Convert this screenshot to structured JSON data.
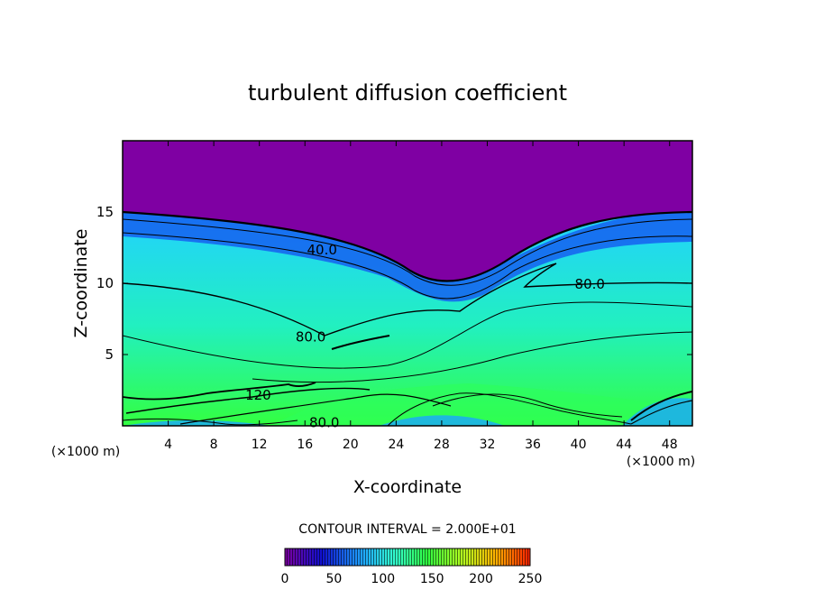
{
  "chart_data": {
    "type": "heatmap",
    "title": "turbulent diffusion coefficient",
    "xlabel": "X-coordinate",
    "ylabel": "Z-coordinate",
    "x_unit_left": "(×1000 m)",
    "x_unit_right": "(×1000 m)",
    "xlim": [
      0,
      50
    ],
    "ylim": [
      0,
      20
    ],
    "x_ticks": [
      "4",
      "8",
      "12",
      "16",
      "20",
      "24",
      "28",
      "32",
      "36",
      "40",
      "44",
      "48"
    ],
    "x_tick_values": [
      4,
      8,
      12,
      16,
      20,
      24,
      28,
      32,
      36,
      40,
      44,
      48
    ],
    "y_ticks": [
      "5",
      "10",
      "15"
    ],
    "y_tick_values": [
      5,
      10,
      15
    ],
    "contour_interval_text": "CONTOUR INTERVAL = 2.000E+01",
    "contour_interval": 20,
    "contour_labels": [
      {
        "text": "40.0",
        "x": 17.5,
        "z": 12.4
      },
      {
        "text": "80.0",
        "x": 41.0,
        "z": 10.0
      },
      {
        "text": "80.0",
        "x": 16.5,
        "z": 6.3
      },
      {
        "text": "120",
        "x": 11.9,
        "z": 2.2
      },
      {
        "text": "80.0",
        "x": 17.7,
        "z": 0.3
      }
    ],
    "colorbar": {
      "min": 0,
      "max": 250,
      "tick_labels": [
        "0",
        "50",
        "100",
        "150",
        "200",
        "250"
      ],
      "tick_values": [
        0,
        50,
        100,
        150,
        200,
        250
      ],
      "colors": [
        "#7d00a0",
        "#1010d0",
        "#1fa8ff",
        "#33ffcc",
        "#2fff40",
        "#b0ff20",
        "#ffb000",
        "#ff2000"
      ]
    },
    "regions": {
      "upper_layer_color": "#7f00a3",
      "lower_layer_color_range": [
        "#2fa9ff",
        "#30ff50"
      ]
    }
  }
}
